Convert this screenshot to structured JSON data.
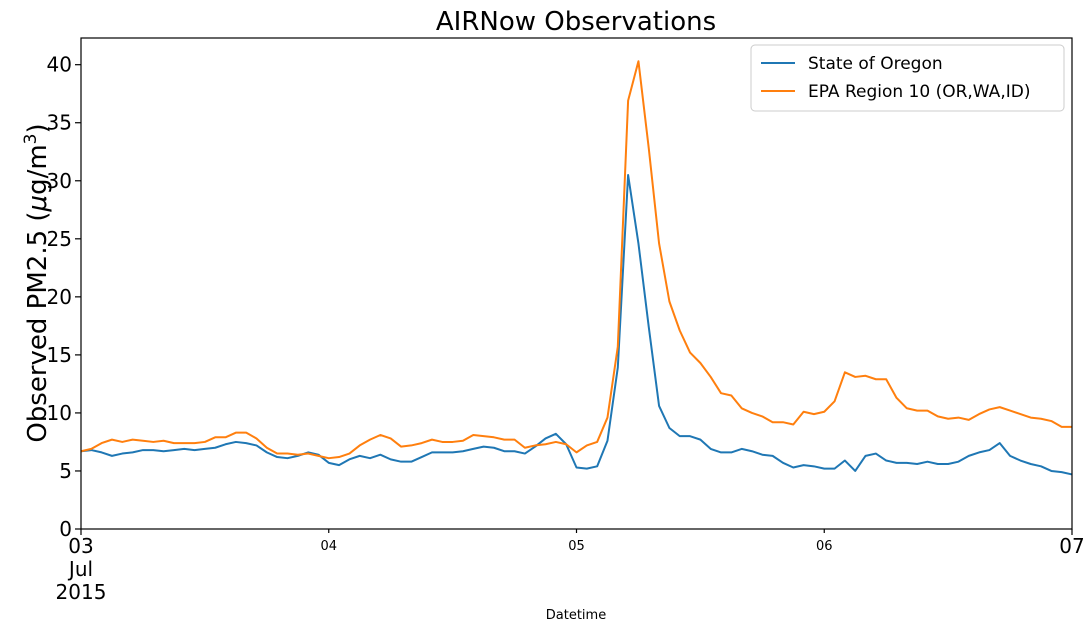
{
  "chart_data": {
    "type": "line",
    "title": "AIRNow Observations",
    "xlabel": "Datetime",
    "ylabel_parts": [
      "Observed PM2.5 (",
      "μ",
      "g/m",
      "3",
      ")"
    ],
    "xlim": [
      "2015-07-03 00:00",
      "2015-07-07 00:00"
    ],
    "ylim": [
      0,
      42.3
    ],
    "yticks": [
      0,
      5,
      10,
      15,
      20,
      25,
      30,
      35,
      40
    ],
    "xticks": [
      {
        "value": "2015-07-03 00:00",
        "lines": [
          "03",
          "Jul",
          "2015"
        ],
        "major": true
      },
      {
        "value": "2015-07-04 00:00",
        "lines": [
          "04"
        ],
        "major": false
      },
      {
        "value": "2015-07-05 00:00",
        "lines": [
          "05"
        ],
        "major": false
      },
      {
        "value": "2015-07-06 00:00",
        "lines": [
          "06"
        ],
        "major": false
      },
      {
        "value": "2015-07-07 00:00",
        "lines": [
          "07"
        ],
        "major": true
      }
    ],
    "legend_position": "top-right",
    "grid": false,
    "x_interval_hours": 1,
    "x_start": "2015-07-03 00:00",
    "series": [
      {
        "name": "State of Oregon",
        "color": "#1f77b4",
        "values": [
          6.7,
          6.8,
          6.6,
          6.3,
          6.5,
          6.6,
          6.8,
          6.8,
          6.7,
          6.8,
          6.9,
          6.8,
          6.9,
          7.0,
          7.3,
          7.5,
          7.4,
          7.2,
          6.6,
          6.2,
          6.1,
          6.3,
          6.6,
          6.4,
          5.7,
          5.5,
          6.0,
          6.3,
          6.1,
          6.4,
          6.0,
          5.8,
          5.8,
          6.2,
          6.6,
          6.6,
          6.6,
          6.7,
          6.9,
          7.1,
          7.0,
          6.7,
          6.7,
          6.5,
          7.1,
          7.8,
          8.2,
          7.3,
          5.3,
          5.2,
          5.4,
          7.6,
          13.9,
          30.5,
          24.6,
          17.4,
          10.6,
          8.7,
          8.0,
          8.0,
          7.7,
          6.9,
          6.6,
          6.6,
          6.9,
          6.7,
          6.4,
          6.3,
          5.7,
          5.3,
          5.5,
          5.4,
          5.2,
          5.2,
          5.9,
          5.0,
          6.3,
          6.5,
          5.9,
          5.7,
          5.7,
          5.6,
          5.8,
          5.6,
          5.6,
          5.8,
          6.3,
          6.6,
          6.8,
          7.4,
          6.3,
          5.9,
          5.6,
          5.4,
          5.0,
          4.9,
          4.7
        ]
      },
      {
        "name": "EPA Region 10 (OR,WA,ID)",
        "color": "#ff7f0e",
        "values": [
          6.7,
          6.9,
          7.4,
          7.7,
          7.5,
          7.7,
          7.6,
          7.5,
          7.6,
          7.4,
          7.4,
          7.4,
          7.5,
          7.9,
          7.9,
          8.3,
          8.3,
          7.8,
          7.0,
          6.5,
          6.5,
          6.4,
          6.5,
          6.3,
          6.1,
          6.2,
          6.5,
          7.2,
          7.7,
          8.1,
          7.8,
          7.1,
          7.2,
          7.4,
          7.7,
          7.5,
          7.5,
          7.6,
          8.1,
          8.0,
          7.9,
          7.7,
          7.7,
          7.0,
          7.2,
          7.3,
          7.5,
          7.3,
          6.6,
          7.2,
          7.5,
          9.6,
          15.7,
          36.9,
          40.3,
          32.8,
          24.6,
          19.6,
          17.1,
          15.2,
          14.3,
          13.1,
          11.7,
          11.5,
          10.4,
          10.0,
          9.7,
          9.2,
          9.2,
          9.0,
          10.1,
          9.9,
          10.1,
          11.0,
          13.5,
          13.1,
          13.2,
          12.9,
          12.9,
          11.3,
          10.4,
          10.2,
          10.2,
          9.7,
          9.5,
          9.6,
          9.4,
          9.9,
          10.3,
          10.5,
          10.2,
          9.9,
          9.6,
          9.5,
          9.3,
          8.8,
          8.8
        ]
      }
    ]
  }
}
